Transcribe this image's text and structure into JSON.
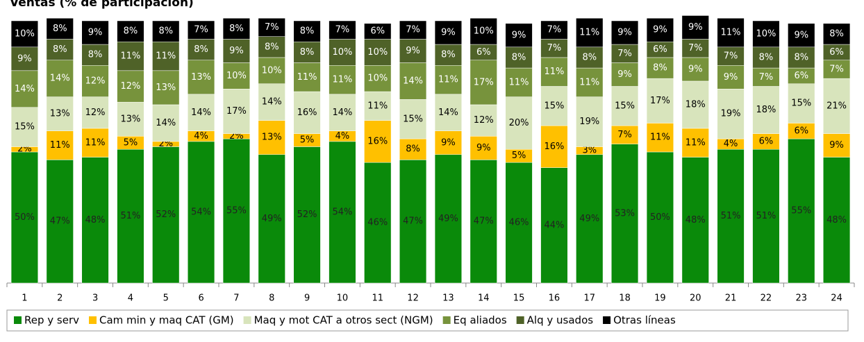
{
  "chart_data": {
    "type": "stacked_bar",
    "title": "Ventas (% de participación)",
    "categories": [
      "1",
      "2",
      "3",
      "4",
      "5",
      "6",
      "7",
      "8",
      "9",
      "10",
      "11",
      "12",
      "13",
      "14",
      "15",
      "16",
      "17",
      "18",
      "19",
      "20",
      "21",
      "22",
      "23",
      "24"
    ],
    "ylim": [
      0,
      100
    ],
    "legend": "bottom",
    "series": [
      {
        "name": "Rep y serv",
        "color": "#0a8a0a",
        "values": [
          50,
          47,
          48,
          51,
          52,
          54,
          55,
          49,
          52,
          54,
          46,
          47,
          49,
          47,
          46,
          44,
          49,
          53,
          50,
          48,
          51,
          51,
          55,
          48
        ],
        "value_labels": [
          "50%",
          "47%",
          "48%",
          "51%",
          "52%",
          "54%",
          "55%",
          "49%",
          "52%",
          "54%",
          "46%",
          "47%",
          "49%",
          "47%",
          "46%",
          "44%",
          "49%",
          "53%",
          "50%",
          "48%",
          "51%",
          "51%",
          "55%",
          "48%"
        ]
      },
      {
        "name": "Cam min y maq CAT (GM)",
        "color": "#ffc000",
        "values": [
          2,
          11,
          11,
          5,
          2,
          4,
          2,
          13,
          5,
          4,
          16,
          8,
          9,
          9,
          5,
          16,
          3,
          7,
          11,
          11,
          4,
          6,
          6,
          9
        ],
        "value_labels": [
          "2%",
          "11%",
          "11%",
          "5%",
          "2%",
          "4%",
          "2%",
          "13%",
          "5%",
          "4%",
          "16%",
          "8%",
          "9%",
          "9%",
          "5%",
          "16%",
          "3%",
          "7%",
          "11%",
          "11%",
          "4%",
          "6%",
          "6%",
          "9%"
        ]
      },
      {
        "name": "Maq y mot CAT a otros sect (NGM)",
        "color": "#d8e4bc",
        "values": [
          15,
          13,
          12,
          13,
          14,
          14,
          17,
          14,
          16,
          14,
          11,
          15,
          14,
          12,
          20,
          15,
          19,
          15,
          17,
          18,
          19,
          18,
          15,
          21
        ],
        "value_labels": [
          "15%",
          "13%",
          "12%",
          "13%",
          "14%",
          "14%",
          "17%",
          "14%",
          "16%",
          "14%",
          "11%",
          "15%",
          "14%",
          "12%",
          "20%",
          "15%",
          "19%",
          "15%",
          "17%",
          "18%",
          "19%",
          "18%",
          "15%",
          "21%"
        ]
      },
      {
        "name": "Eq aliados",
        "color": "#77933c",
        "values": [
          14,
          14,
          12,
          12,
          13,
          13,
          10,
          10,
          11,
          11,
          10,
          14,
          11,
          17,
          11,
          11,
          11,
          9,
          8,
          9,
          9,
          7,
          6,
          7
        ],
        "value_labels": [
          "14%",
          "14%",
          "12%",
          "12%",
          "13%",
          "13%",
          "10%",
          "10%",
          "11%",
          "11%",
          "10%",
          "14%",
          "11%",
          "17%",
          "11%",
          "11%",
          "11%",
          "9%",
          "8%",
          "9%",
          "9%",
          "7%",
          "6%",
          "7%"
        ]
      },
      {
        "name": "Alq y usados",
        "color": "#4f6228",
        "values": [
          9,
          8,
          8,
          11,
          11,
          8,
          9,
          8,
          8,
          10,
          10,
          9,
          8,
          6,
          8,
          7,
          8,
          7,
          6,
          7,
          7,
          8,
          8,
          6
        ],
        "value_labels": [
          "9%",
          "8%",
          "8%",
          "11%",
          "11%",
          "8%",
          "9%",
          "8%",
          "8%",
          "10%",
          "10%",
          "9%",
          "8%",
          "6%",
          "8%",
          "7%",
          "8%",
          "7%",
          "6%",
          "7%",
          "7%",
          "8%",
          "8%",
          "6%"
        ]
      },
      {
        "name": "Otras líneas",
        "color": "#000000",
        "values": [
          10,
          8,
          9,
          8,
          8,
          7,
          8,
          7,
          8,
          7,
          6,
          7,
          9,
          10,
          9,
          7,
          11,
          9,
          9,
          9,
          11,
          10,
          9,
          8
        ],
        "value_labels": [
          "10%",
          "8%",
          "9%",
          "8%",
          "8%",
          "7%",
          "8%",
          "7%",
          "8%",
          "7%",
          "6%",
          "7%",
          "9%",
          "10%",
          "9%",
          "7%",
          "11%",
          "9%",
          "9%",
          "9%",
          "11%",
          "10%",
          "9%",
          "8%"
        ]
      }
    ]
  }
}
